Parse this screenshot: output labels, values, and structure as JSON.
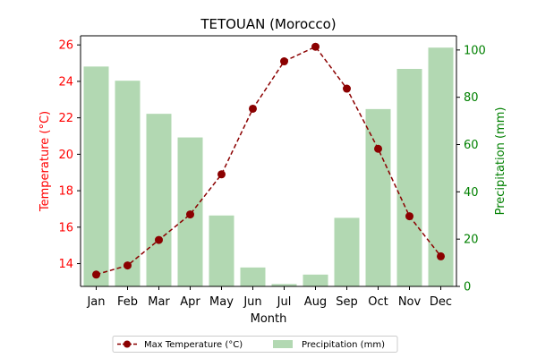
{
  "chart_data": {
    "type": "bar+line",
    "title": "TETOUAN (Morocco)",
    "xlabel": "Month",
    "ylabel_left": "Temperature (°C)",
    "ylabel_right": "Precipitation (mm)",
    "categories": [
      "Jan",
      "Feb",
      "Mar",
      "Apr",
      "May",
      "Jun",
      "Jul",
      "Aug",
      "Sep",
      "Oct",
      "Nov",
      "Dec"
    ],
    "series": [
      {
        "name": "Max Temperature (°C)",
        "kind": "line",
        "axis": "left",
        "color": "#8b0000",
        "values": [
          13.4,
          13.9,
          15.3,
          16.7,
          18.9,
          22.5,
          25.1,
          25.9,
          23.6,
          20.3,
          16.6,
          14.4
        ]
      },
      {
        "name": "Precipitation (mm)",
        "kind": "bar",
        "axis": "right",
        "color": "#b2d8b2",
        "values": [
          93,
          87,
          73,
          63,
          30,
          8,
          1,
          5,
          29,
          75,
          92,
          101
        ]
      }
    ],
    "ylim_left": [
      12.75,
      26.5
    ],
    "ylim_right": [
      0,
      106
    ],
    "yticks_left": [
      "14",
      "16",
      "18",
      "20",
      "22",
      "24",
      "26"
    ],
    "yticks_right": [
      "0",
      "20",
      "40",
      "60",
      "80",
      "100"
    ],
    "left_axis_color": "#ff0000",
    "right_axis_color": "#008000",
    "grid": false,
    "legend_position": "bottom-center"
  }
}
